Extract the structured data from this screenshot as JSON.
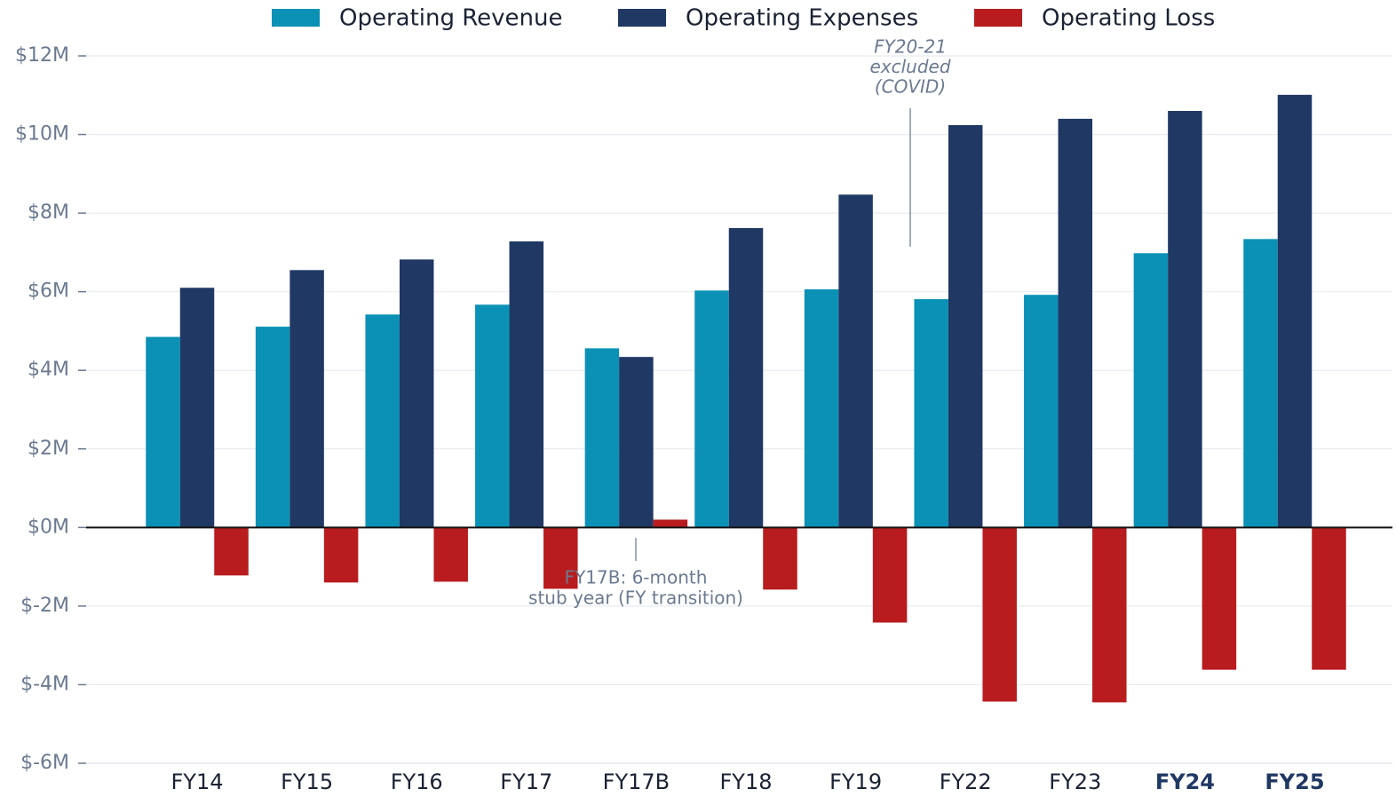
{
  "chart_data": {
    "type": "bar",
    "categories": [
      "FY14",
      "FY15",
      "FY16",
      "FY17",
      "FY17B",
      "FY18",
      "FY19",
      "FY22",
      "FY23",
      "FY24",
      "FY25"
    ],
    "highlight_categories": [
      9,
      10
    ],
    "series": [
      {
        "name": "Operating Revenue",
        "color": "#0a91b5",
        "values": [
          4.85,
          5.11,
          5.42,
          5.67,
          4.56,
          6.03,
          6.06,
          5.81,
          5.92,
          6.98,
          7.34
        ]
      },
      {
        "name": "Operating Expenses",
        "color": "#203864",
        "values": [
          6.1,
          6.55,
          6.82,
          7.28,
          4.34,
          7.62,
          8.47,
          10.24,
          10.4,
          10.6,
          11.01
        ]
      },
      {
        "name": "Operating Loss",
        "color": "#b81c1e",
        "values": [
          -1.22,
          -1.4,
          -1.38,
          -1.56,
          0.2,
          -1.58,
          -2.42,
          -4.43,
          -4.45,
          -3.62,
          -3.62
        ]
      }
    ],
    "ylim": [
      -6,
      12
    ],
    "yticks": [
      {
        "value": -6,
        "label": "$-6M"
      },
      {
        "value": -4,
        "label": "$-4M"
      },
      {
        "value": -2,
        "label": "$-2M"
      },
      {
        "value": 0,
        "label": "$0M"
      },
      {
        "value": 2,
        "label": "$2M"
      },
      {
        "value": 4,
        "label": "$4M"
      },
      {
        "value": 6,
        "label": "$6M"
      },
      {
        "value": 8,
        "label": "$8M"
      },
      {
        "value": 10,
        "label": "$10M"
      },
      {
        "value": 12,
        "label": "$12M"
      }
    ],
    "grid": true,
    "annotations": [
      {
        "lines": [
          "FY20-21",
          "excluded",
          "(COVID)"
        ]
      },
      {
        "lines": [
          "FY17B: 6-month",
          "stub year (FY transition)"
        ]
      }
    ]
  }
}
